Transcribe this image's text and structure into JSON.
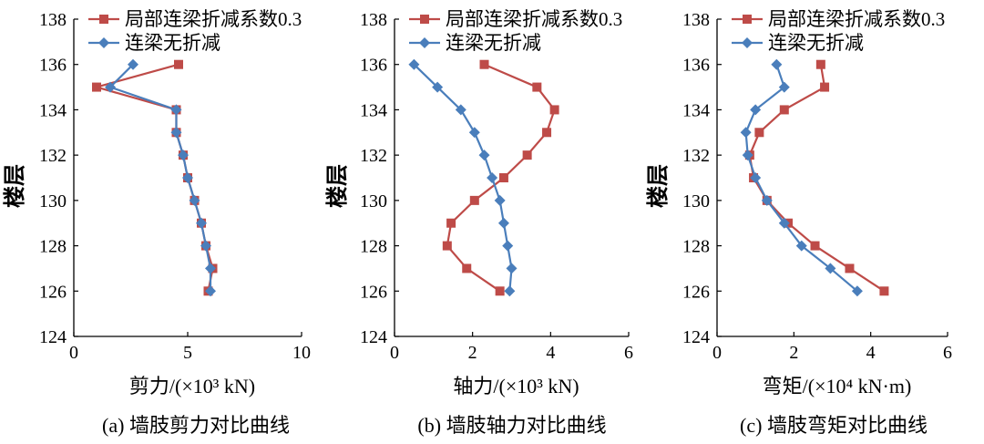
{
  "colors": {
    "red": "#BE4B48",
    "blue": "#4A7EBB",
    "axis": "#000000"
  },
  "chart_data": [
    {
      "type": "line",
      "xlabel": "剪力/(×10³ kN)",
      "ylabel": "楼层",
      "caption": "(a) 墙肢剪力对比曲线",
      "xlim": [
        0,
        10
      ],
      "ylim": [
        124,
        138
      ],
      "x_ticks": [
        "0",
        "5",
        "10"
      ],
      "y_ticks": [
        "124",
        "126",
        "128",
        "130",
        "132",
        "134",
        "136",
        "138"
      ],
      "legend_position": "top-right",
      "series": [
        {
          "name": "局部连梁折减系数0.3",
          "color": "red",
          "marker": "square",
          "points": [
            [
              4.6,
              136
            ],
            [
              1.0,
              135
            ],
            [
              4.5,
              134
            ],
            [
              4.5,
              133
            ],
            [
              4.8,
              132
            ],
            [
              5.0,
              131
            ],
            [
              5.3,
              130
            ],
            [
              5.6,
              129
            ],
            [
              5.8,
              128
            ],
            [
              6.1,
              127
            ],
            [
              5.9,
              126
            ]
          ]
        },
        {
          "name": "连梁无折减",
          "color": "blue",
          "marker": "diamond",
          "points": [
            [
              2.6,
              136
            ],
            [
              1.6,
              135
            ],
            [
              4.5,
              134
            ],
            [
              4.5,
              133
            ],
            [
              4.8,
              132
            ],
            [
              5.0,
              131
            ],
            [
              5.3,
              130
            ],
            [
              5.6,
              129
            ],
            [
              5.8,
              128
            ],
            [
              6.0,
              127
            ],
            [
              6.0,
              126
            ]
          ]
        }
      ]
    },
    {
      "type": "line",
      "xlabel": "轴力/(×10³ kN)",
      "ylabel": "楼层",
      "caption": "(b) 墙肢轴力对比曲线",
      "xlim": [
        0,
        6
      ],
      "ylim": [
        124,
        138
      ],
      "x_ticks": [
        "0",
        "2",
        "4",
        "6"
      ],
      "y_ticks": [
        "124",
        "126",
        "128",
        "130",
        "132",
        "134",
        "136",
        "138"
      ],
      "legend_position": "top-right",
      "series": [
        {
          "name": "局部连梁折减系数0.3",
          "color": "red",
          "marker": "square",
          "points": [
            [
              2.3,
              136
            ],
            [
              3.65,
              135
            ],
            [
              4.1,
              134
            ],
            [
              3.9,
              133
            ],
            [
              3.4,
              132
            ],
            [
              2.8,
              131
            ],
            [
              2.05,
              130
            ],
            [
              1.45,
              129
            ],
            [
              1.35,
              128
            ],
            [
              1.85,
              127
            ],
            [
              2.7,
              126
            ]
          ]
        },
        {
          "name": "连梁无折减",
          "color": "blue",
          "marker": "diamond",
          "points": [
            [
              0.5,
              136
            ],
            [
              1.1,
              135
            ],
            [
              1.7,
              134
            ],
            [
              2.05,
              133
            ],
            [
              2.3,
              132
            ],
            [
              2.5,
              131
            ],
            [
              2.7,
              130
            ],
            [
              2.8,
              129
            ],
            [
              2.9,
              128
            ],
            [
              3.0,
              127
            ],
            [
              2.95,
              126
            ]
          ]
        }
      ]
    },
    {
      "type": "line",
      "xlabel": "弯矩/(×10⁴ kN·m)",
      "ylabel": "楼层",
      "caption": "(c) 墙肢弯矩对比曲线",
      "xlim": [
        0,
        6
      ],
      "ylim": [
        124,
        138
      ],
      "x_ticks": [
        "0",
        "2",
        "4",
        "6"
      ],
      "y_ticks": [
        "124",
        "126",
        "128",
        "130",
        "132",
        "134",
        "136",
        "138"
      ],
      "legend_position": "top-right",
      "series": [
        {
          "name": "局部连梁折减系数0.3",
          "color": "red",
          "marker": "square",
          "points": [
            [
              2.7,
              136
            ],
            [
              2.8,
              135
            ],
            [
              1.75,
              134
            ],
            [
              1.1,
              133
            ],
            [
              0.85,
              132
            ],
            [
              0.95,
              131
            ],
            [
              1.3,
              130
            ],
            [
              1.85,
              129
            ],
            [
              2.55,
              128
            ],
            [
              3.45,
              127
            ],
            [
              4.35,
              126
            ]
          ]
        },
        {
          "name": "连梁无折减",
          "color": "blue",
          "marker": "diamond",
          "points": [
            [
              1.55,
              136
            ],
            [
              1.75,
              135
            ],
            [
              1.0,
              134
            ],
            [
              0.75,
              133
            ],
            [
              0.8,
              132
            ],
            [
              1.0,
              131
            ],
            [
              1.3,
              130
            ],
            [
              1.75,
              129
            ],
            [
              2.2,
              128
            ],
            [
              2.95,
              127
            ],
            [
              3.65,
              126
            ]
          ]
        }
      ]
    }
  ]
}
